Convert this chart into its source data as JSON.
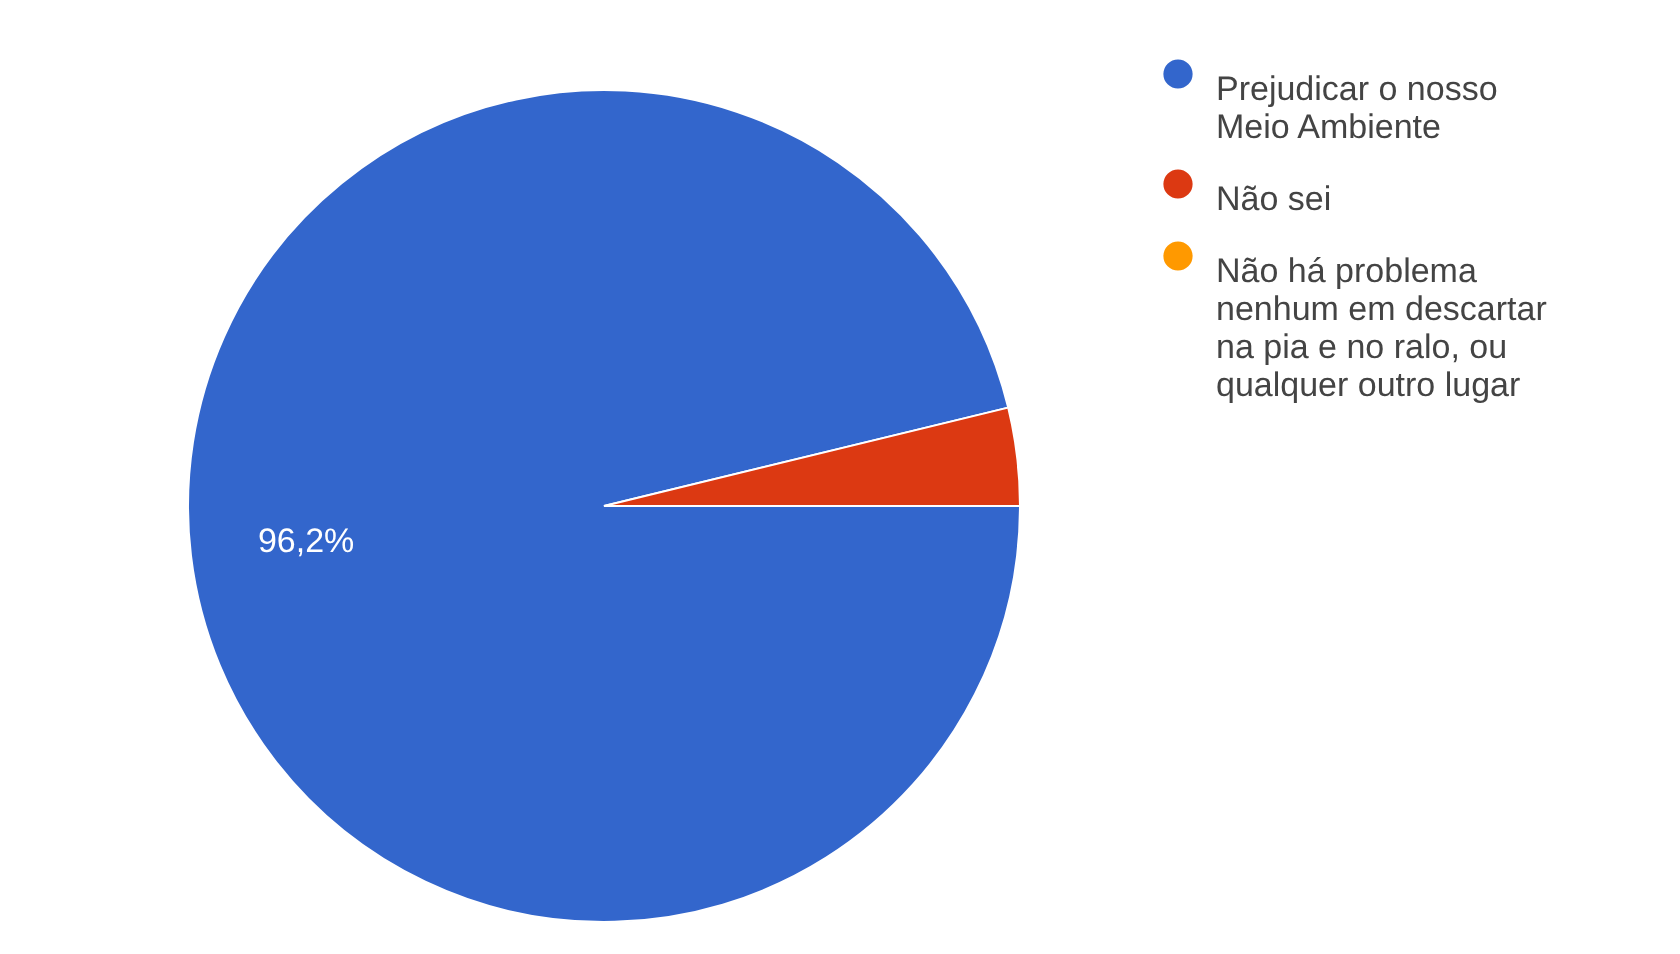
{
  "chart_data": {
    "type": "pie",
    "categories": [
      "Prejudicar o nosso Meio Ambiente",
      "Não sei",
      "Não há problema nenhum em descartar na pia e no ralo, ou qualquer outro lugar"
    ],
    "values": [
      96.2,
      3.8,
      0
    ],
    "colors": [
      "#3366cc",
      "#dc3912",
      "#ff9900"
    ],
    "value_labels": [
      "96,2%",
      null,
      null
    ],
    "legend": "top right"
  }
}
